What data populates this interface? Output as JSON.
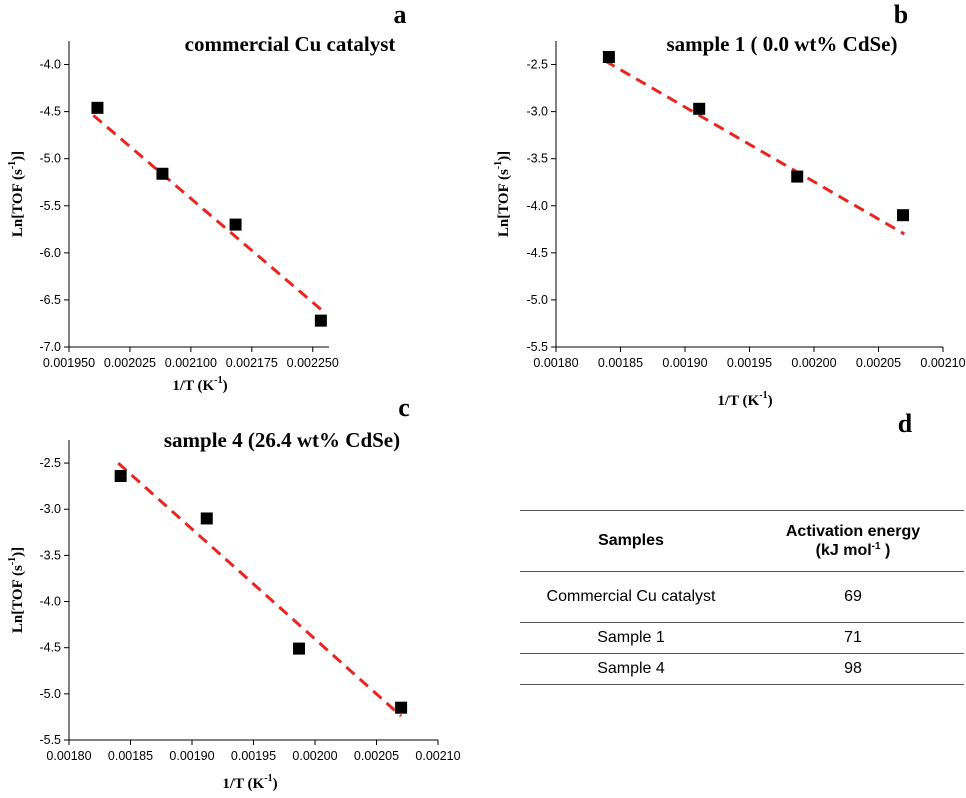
{
  "panel_letters": [
    "a",
    "b",
    "c",
    "d"
  ],
  "chart_data": [
    {
      "type": "scatter",
      "title": "commercial Cu catalyst",
      "xlabel": "1/T (K",
      "xlabel_sup": "-1",
      "xlabel_close": ")",
      "ylabel": "Ln[TOF (s",
      "ylabel_sup": "-1",
      "ylabel_close": ")]",
      "xlim": [
        0.00195,
        0.00227
      ],
      "ylim": [
        -7.0,
        -3.75
      ],
      "xticks": [
        "0.001950",
        "0.002025",
        "0.002100",
        "0.002175",
        "0.002250"
      ],
      "xtick_values": [
        0.00195,
        0.002025,
        0.0021,
        0.002175,
        0.00225
      ],
      "yticks": [
        "-4.0",
        "-4.5",
        "-5.0",
        "-5.5",
        "-6.0",
        "-6.5",
        "-7.0"
      ],
      "ytick_values": [
        -4.0,
        -4.5,
        -5.0,
        -5.5,
        -6.0,
        -6.5,
        -7.0
      ],
      "points": [
        {
          "x": 0.001985,
          "y": -4.46
        },
        {
          "x": 0.002065,
          "y": -5.16
        },
        {
          "x": 0.002155,
          "y": -5.7
        },
        {
          "x": 0.00226,
          "y": -6.72
        }
      ],
      "fit": [
        {
          "x": 0.00198,
          "y": -4.54
        },
        {
          "x": 0.00226,
          "y": -6.6
        }
      ],
      "marker_color": "#000000",
      "fit_color": "#e8251f"
    },
    {
      "type": "scatter",
      "title": "sample 1 ( 0.0 wt% CdSe)",
      "xlabel": "1/T (K",
      "xlabel_sup": "-1",
      "xlabel_close": ")",
      "ylabel": "Ln[TOF (s",
      "ylabel_sup": "-1",
      "ylabel_close": ")]",
      "xlim": [
        0.0018,
        0.0021
      ],
      "ylim": [
        -5.5,
        -2.25
      ],
      "xticks": [
        "0.00180",
        "0.00185",
        "0.00190",
        "0.00195",
        "0.00200",
        "0.00205",
        "0.00210"
      ],
      "xtick_values": [
        0.0018,
        0.00185,
        0.0019,
        0.00195,
        0.002,
        0.00205,
        0.0021
      ],
      "yticks": [
        "-2.5",
        "-3.0",
        "-3.5",
        "-4.0",
        "-4.5",
        "-5.0",
        "-5.5"
      ],
      "ytick_values": [
        -2.5,
        -3.0,
        -3.5,
        -4.0,
        -4.5,
        -5.0,
        -5.5
      ],
      "points": [
        {
          "x": 0.001841,
          "y": -2.42
        },
        {
          "x": 0.001911,
          "y": -2.97
        },
        {
          "x": 0.001987,
          "y": -3.69
        },
        {
          "x": 0.002069,
          "y": -4.1
        }
      ],
      "fit": [
        {
          "x": 0.001838,
          "y": -2.46
        },
        {
          "x": 0.00207,
          "y": -4.3
        }
      ],
      "marker_color": "#000000",
      "fit_color": "#e8251f"
    },
    {
      "type": "scatter",
      "title": "sample 4 (26.4 wt% CdSe)",
      "xlabel": "1/T (K",
      "xlabel_sup": "-1",
      "xlabel_close": ")",
      "ylabel": "Ln[TOF (s",
      "ylabel_sup": "-1",
      "ylabel_close": ")]",
      "xlim": [
        0.0018,
        0.0021
      ],
      "ylim": [
        -5.5,
        -2.25
      ],
      "xticks": [
        "0.00180",
        "0.00185",
        "0.00190",
        "0.00195",
        "0.00200",
        "0.00205",
        "0.00210"
      ],
      "xtick_values": [
        0.0018,
        0.00185,
        0.0019,
        0.00195,
        0.002,
        0.00205,
        0.0021
      ],
      "yticks": [
        "-2.5",
        "-3.0",
        "-3.5",
        "-4.0",
        "-4.5",
        "-5.0",
        "-5.5"
      ],
      "ytick_values": [
        -2.5,
        -3.0,
        -3.5,
        -4.0,
        -4.5,
        -5.0,
        -5.5
      ],
      "points": [
        {
          "x": 0.001842,
          "y": -2.64
        },
        {
          "x": 0.001912,
          "y": -3.1
        },
        {
          "x": 0.001987,
          "y": -4.51
        },
        {
          "x": 0.00207,
          "y": -5.15
        }
      ],
      "fit": [
        {
          "x": 0.00184,
          "y": -2.5
        },
        {
          "x": 0.00207,
          "y": -5.24
        }
      ],
      "marker_color": "#000000",
      "fit_color": "#e8251f"
    },
    {
      "type": "table",
      "columns": [
        "Samples",
        "Activation energy",
        "(kJ mol",
        "-1",
        " )"
      ],
      "rows": [
        [
          "Commercial Cu catalyst",
          "69"
        ],
        [
          "Sample 1",
          "71"
        ],
        [
          "Sample 4",
          "98"
        ]
      ]
    }
  ]
}
